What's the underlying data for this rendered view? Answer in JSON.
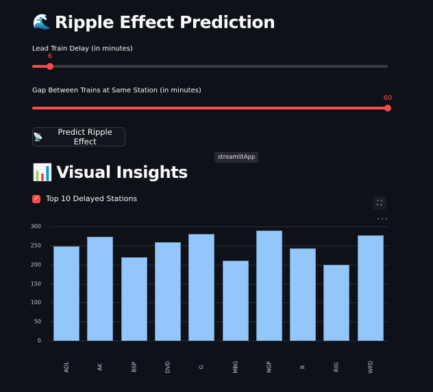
{
  "header": {
    "title_icon": "🌊",
    "title": "Ripple Effect Prediction"
  },
  "sliders": [
    {
      "label": "Lead Train Delay (in minutes)",
      "value": "6",
      "percent": 5
    },
    {
      "label": "Gap Between Trains at Same Station (in minutes)",
      "value": "60",
      "percent": 100
    }
  ],
  "predict_button": {
    "icon": "📡",
    "label": "Predict Ripple Effect"
  },
  "tooltip": "streamlitApp",
  "insights": {
    "icon": "📊",
    "title": "Visual Insights"
  },
  "checkbox": {
    "label": "Top 10 Delayed Stations",
    "checked": true
  },
  "chart_toolbar": {
    "fullscreen_icon": "⛶",
    "more_icon": "•••"
  },
  "colors": {
    "accent": "#ff4b4b",
    "bar": "#93c7fb",
    "background": "#0e1117"
  },
  "chart_data": {
    "type": "bar",
    "title": "",
    "xlabel": "",
    "ylabel": "",
    "categories": [
      "ADL",
      "AK",
      "BSP",
      "DVD",
      "G",
      "MBG",
      "NGP",
      "R",
      "RIG",
      "WFD"
    ],
    "values": [
      248,
      273,
      219,
      259,
      280,
      210,
      289,
      242,
      199,
      276
    ],
    "yticks": [
      "0",
      "50",
      "100",
      "150",
      "200",
      "250",
      "300"
    ],
    "ylim": [
      0,
      300
    ],
    "grid": true,
    "legend": false
  }
}
